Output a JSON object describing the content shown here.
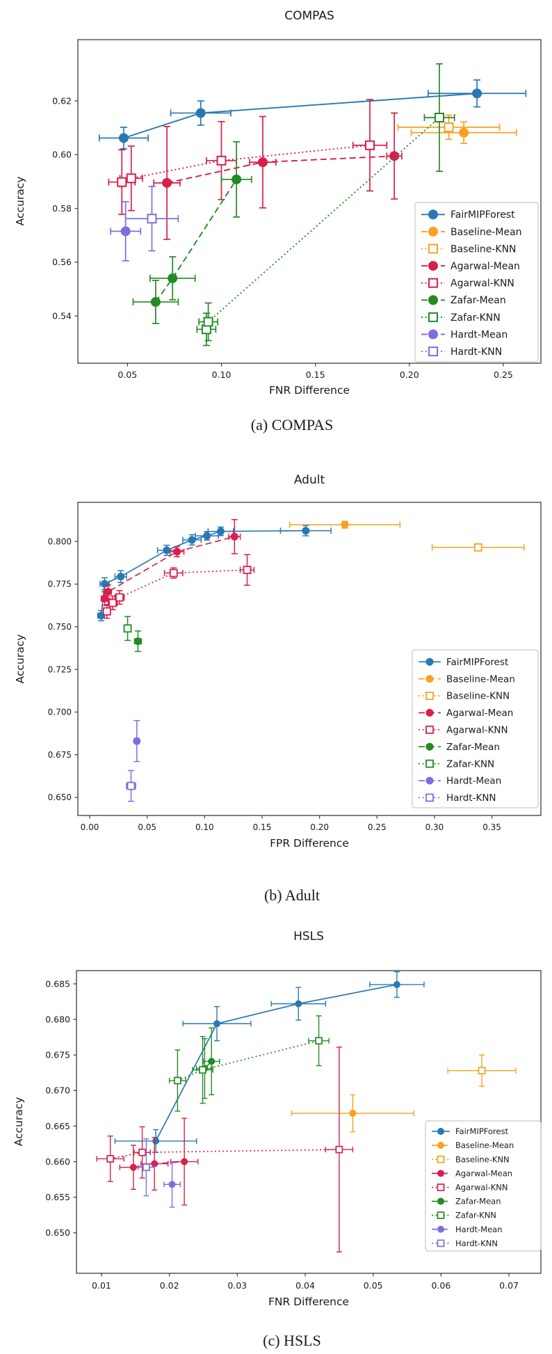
{
  "page": {
    "background": "#ffffff",
    "text_color": "#1a1a1a",
    "spine_color": "#3c3c3c"
  },
  "colors": {
    "blue": "#2878B5",
    "orange": "#FBA01E",
    "crimson": "#D91E49",
    "green": "#228B22",
    "purple": "#7D6EE0"
  },
  "series_styles": {
    "FairMIPForest": {
      "color": "blue",
      "marker": "circle",
      "line": "solid"
    },
    "Baseline-Mean": {
      "color": "orange",
      "marker": "circle",
      "line": "dashed"
    },
    "Baseline-KNN": {
      "color": "orange",
      "marker": "square",
      "line": "dotted"
    },
    "Agarwal-Mean": {
      "color": "crimson",
      "marker": "circle",
      "line": "dashed"
    },
    "Agarwal-KNN": {
      "color": "crimson",
      "marker": "square",
      "line": "dotted"
    },
    "Zafar-Mean": {
      "color": "green",
      "marker": "circle",
      "line": "dashed"
    },
    "Zafar-KNN": {
      "color": "green",
      "marker": "square",
      "line": "dotted"
    },
    "Hardt-Mean": {
      "color": "purple",
      "marker": "circle",
      "line": "dashed"
    },
    "Hardt-KNN": {
      "color": "purple",
      "marker": "square",
      "line": "dotted"
    }
  },
  "chart_data": [
    {
      "type": "scatter",
      "title": "COMPAS",
      "xlabel": "FNR Difference",
      "ylabel": "Accuracy",
      "caption": "(a) COMPAS",
      "xlim": [
        0.0236,
        0.27
      ],
      "ylim": [
        0.5224,
        0.6428
      ],
      "xticks": [
        0.05,
        0.1,
        0.15,
        0.2,
        0.25
      ],
      "xtick_labels": [
        "0.05",
        "0.10",
        "0.15",
        "0.20",
        "0.25"
      ],
      "yticks": [
        0.54,
        0.56,
        0.58,
        0.6,
        0.62
      ],
      "ytick_labels": [
        "0.54",
        "0.56",
        "0.58",
        "0.60",
        "0.62"
      ],
      "grid": false,
      "legend_position": "lower right",
      "series": [
        {
          "name": "FairMIPForest",
          "connect": true,
          "points": [
            [
              0.048,
              0.6062,
              0.013,
              0.004
            ],
            [
              0.089,
              0.6155,
              0.016,
              0.0045
            ],
            [
              0.236,
              0.6228,
              0.026,
              0.005
            ]
          ]
        },
        {
          "name": "Baseline-Mean",
          "connect": false,
          "points": [
            [
              0.229,
              0.6082,
              0.028,
              0.004
            ]
          ]
        },
        {
          "name": "Baseline-KNN",
          "connect": false,
          "points": [
            [
              0.221,
              0.6102,
              0.027,
              0.0045
            ]
          ]
        },
        {
          "name": "Agarwal-Mean",
          "connect": true,
          "points": [
            [
              0.071,
              0.5895,
              0.007,
              0.021
            ],
            [
              0.122,
              0.5972,
              0.007,
              0.017
            ],
            [
              0.192,
              0.5995,
              0.004,
              0.016
            ]
          ]
        },
        {
          "name": "Agarwal-KNN",
          "connect": true,
          "points": [
            [
              0.047,
              0.5898,
              0.007,
              0.012
            ],
            [
              0.052,
              0.5912,
              0.006,
              0.012
            ],
            [
              0.1,
              0.5978,
              0.008,
              0.0145
            ],
            [
              0.179,
              0.6035,
              0.009,
              0.017
            ]
          ]
        },
        {
          "name": "Zafar-Mean",
          "connect": true,
          "points": [
            [
              0.065,
              0.5452,
              0.012,
              0.008
            ],
            [
              0.074,
              0.554,
              0.012,
              0.008
            ],
            [
              0.108,
              0.5908,
              0.008,
              0.014
            ]
          ]
        },
        {
          "name": "Zafar-KNN",
          "connect": true,
          "points": [
            [
              0.092,
              0.535,
              0.005,
              0.006
            ],
            [
              0.093,
              0.5378,
              0.005,
              0.007
            ],
            [
              0.216,
              0.6138,
              0.008,
              0.02
            ]
          ]
        },
        {
          "name": "Hardt-Mean",
          "connect": false,
          "points": [
            [
              0.049,
              0.5715,
              0.008,
              0.011
            ]
          ]
        },
        {
          "name": "Hardt-KNN",
          "connect": false,
          "points": [
            [
              0.063,
              0.5762,
              0.014,
              0.012
            ]
          ]
        }
      ]
    },
    {
      "type": "scatter",
      "title": "Adult",
      "xlabel": "FPR Difference",
      "ylabel": "Accuracy",
      "caption": "(b) Adult",
      "xlim": [
        -0.0103,
        0.3926
      ],
      "ylim": [
        0.6394,
        0.8229
      ],
      "xticks": [
        0.0,
        0.05,
        0.1,
        0.15,
        0.2,
        0.25,
        0.3,
        0.35
      ],
      "xtick_labels": [
        "0.00",
        "0.05",
        "0.10",
        "0.15",
        "0.20",
        "0.25",
        "0.30",
        "0.35"
      ],
      "yticks": [
        0.65,
        0.675,
        0.7,
        0.725,
        0.75,
        0.775,
        0.8
      ],
      "ytick_labels": [
        "0.650",
        "0.675",
        "0.700",
        "0.725",
        "0.750",
        "0.775",
        "0.800"
      ],
      "grid": false,
      "legend_position": "right",
      "series": [
        {
          "name": "FairMIPForest",
          "connect": true,
          "points": [
            [
              0.01,
              0.7565,
              0.003,
              0.003
            ],
            [
              0.013,
              0.7752,
              0.004,
              0.0035
            ],
            [
              0.027,
              0.7794,
              0.005,
              0.0035
            ],
            [
              0.067,
              0.7948,
              0.008,
              0.003
            ],
            [
              0.089,
              0.8009,
              0.008,
              0.003
            ],
            [
              0.102,
              0.8033,
              0.01,
              0.0025
            ],
            [
              0.114,
              0.8059,
              0.011,
              0.0025
            ],
            [
              0.188,
              0.8063,
              0.022,
              0.003
            ]
          ]
        },
        {
          "name": "Baseline-Mean",
          "connect": false,
          "points": [
            [
              0.222,
              0.8098,
              0.048,
              0.002
            ]
          ]
        },
        {
          "name": "Baseline-KNN",
          "connect": false,
          "points": [
            [
              0.338,
              0.7965,
              0.04,
              0.002
            ]
          ]
        },
        {
          "name": "Agarwal-Mean",
          "connect": true,
          "points": [
            [
              0.013,
              0.7665,
              0.003,
              0.004
            ],
            [
              0.016,
              0.7705,
              0.003,
              0.004
            ],
            [
              0.076,
              0.794,
              0.006,
              0.003
            ],
            [
              0.126,
              0.8028,
              0.005,
              0.01
            ]
          ]
        },
        {
          "name": "Agarwal-KNN",
          "connect": true,
          "points": [
            [
              0.015,
              0.759,
              0.003,
              0.004
            ],
            [
              0.02,
              0.764,
              0.004,
              0.004
            ],
            [
              0.026,
              0.7672,
              0.004,
              0.004
            ],
            [
              0.073,
              0.7815,
              0.008,
              0.003
            ],
            [
              0.137,
              0.7833,
              0.006,
              0.009
            ]
          ]
        },
        {
          "name": "Zafar-Mean",
          "connect": false,
          "points": [
            [
              0.042,
              0.7415,
              0.003,
              0.006
            ]
          ]
        },
        {
          "name": "Zafar-KNN",
          "connect": false,
          "points": [
            [
              0.033,
              0.749,
              0.003,
              0.007
            ]
          ]
        },
        {
          "name": "Hardt-Mean",
          "connect": false,
          "points": [
            [
              0.041,
              0.683,
              0.002,
              0.012
            ]
          ]
        },
        {
          "name": "Hardt-KNN",
          "connect": false,
          "points": [
            [
              0.036,
              0.6567,
              0.004,
              0.009
            ]
          ]
        }
      ]
    },
    {
      "type": "scatter",
      "title": "HSLS",
      "xlabel": "FNR Difference",
      "ylabel": "Accuracy",
      "caption": "(c) HSLS",
      "xlim": [
        0.00632,
        0.0747
      ],
      "ylim": [
        0.6443,
        0.68686
      ],
      "xticks": [
        0.01,
        0.02,
        0.03,
        0.04,
        0.05,
        0.06,
        0.07
      ],
      "xtick_labels": [
        "0.01",
        "0.02",
        "0.03",
        "0.04",
        "0.05",
        "0.06",
        "0.07"
      ],
      "yticks": [
        0.65,
        0.655,
        0.66,
        0.665,
        0.67,
        0.675,
        0.68,
        0.685
      ],
      "ytick_labels": [
        "0.650",
        "0.655",
        "0.660",
        "0.665",
        "0.670",
        "0.675",
        "0.680",
        "0.685"
      ],
      "grid": false,
      "legend_position": "lower right",
      "series": [
        {
          "name": "FairMIPForest",
          "connect": true,
          "points": [
            [
              0.018,
              0.6629,
              0.006,
              0.0016
            ],
            [
              0.027,
              0.6794,
              0.005,
              0.0024
            ],
            [
              0.039,
              0.6822,
              0.004,
              0.0023
            ],
            [
              0.0535,
              0.6849,
              0.004,
              0.0018
            ]
          ]
        },
        {
          "name": "Baseline-Mean",
          "connect": false,
          "points": [
            [
              0.047,
              0.6668,
              0.009,
              0.0026
            ]
          ]
        },
        {
          "name": "Baseline-KNN",
          "connect": false,
          "points": [
            [
              0.066,
              0.6728,
              0.005,
              0.0022
            ]
          ]
        },
        {
          "name": "Agarwal-Mean",
          "connect": true,
          "points": [
            [
              0.0147,
              0.6592,
              0.002,
              0.0031
            ],
            [
              0.0178,
              0.6597,
              0.002,
              0.0037
            ],
            [
              0.0222,
              0.66,
              0.002,
              0.0061
            ]
          ]
        },
        {
          "name": "Agarwal-KNN",
          "connect": true,
          "points": [
            [
              0.0113,
              0.6604,
              0.002,
              0.0032
            ],
            [
              0.016,
              0.6613,
              0.0012,
              0.0036
            ],
            [
              0.045,
              0.6617,
              0.002,
              0.0144
            ]
          ]
        },
        {
          "name": "Zafar-Mean",
          "connect": true,
          "points": [
            [
              0.0252,
              0.6731,
              0.0012,
              0.0042
            ],
            [
              0.0262,
              0.6741,
              0.0012,
              0.0047
            ]
          ]
        },
        {
          "name": "Zafar-KNN",
          "connect": true,
          "points": [
            [
              0.0212,
              0.6714,
              0.0012,
              0.0043
            ],
            [
              0.0249,
              0.6729,
              0.0015,
              0.0047
            ],
            [
              0.042,
              0.677,
              0.0015,
              0.0035
            ]
          ]
        },
        {
          "name": "Hardt-Mean",
          "connect": false,
          "points": [
            [
              0.0204,
              0.6568,
              0.0012,
              0.0032
            ]
          ]
        },
        {
          "name": "Hardt-KNN",
          "connect": false,
          "points": [
            [
              0.0166,
              0.6592,
              0.0012,
              0.004
            ]
          ]
        }
      ]
    }
  ]
}
